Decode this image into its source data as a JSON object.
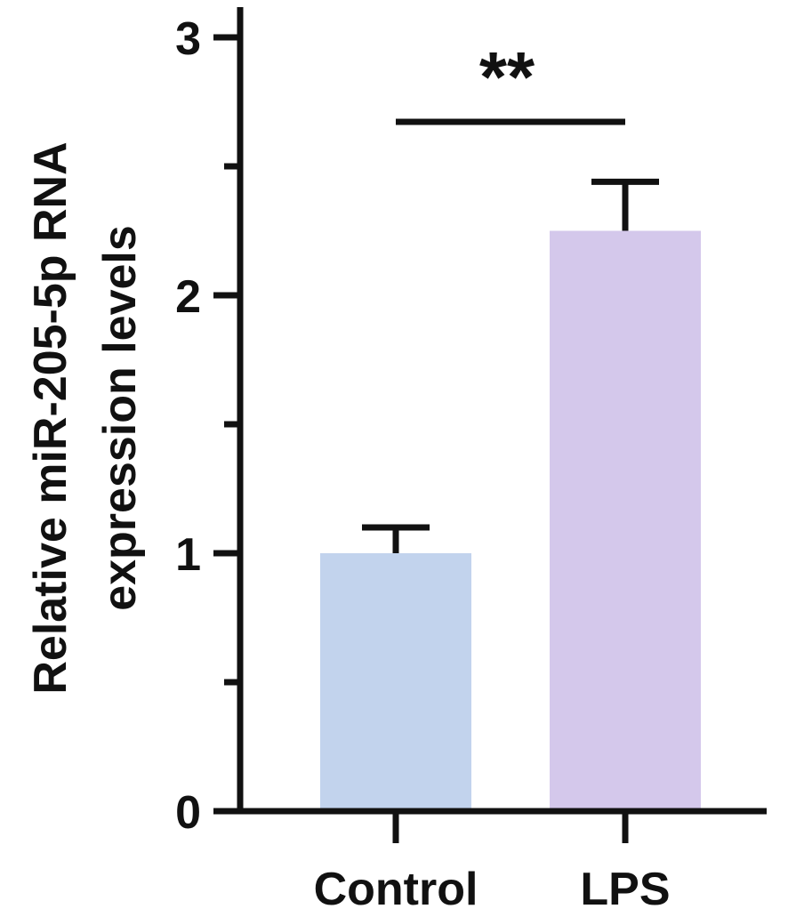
{
  "chart_data": {
    "type": "bar",
    "title": "",
    "xlabel": "",
    "ylabel_lines": [
      "Relative miR-205-5p RNA",
      "expression levels"
    ],
    "categories": [
      "Control",
      "LPS"
    ],
    "values": [
      1.0,
      2.25
    ],
    "error_plus": [
      0.1,
      0.19
    ],
    "colors": [
      "#c2d3ed",
      "#d4c8eb"
    ],
    "ylim": [
      0,
      3.1
    ],
    "yticks_major": [
      0,
      1,
      2,
      3
    ],
    "yticks_minor": [
      0.5,
      1.5,
      2.5
    ],
    "ytick_labels": [
      "0",
      "1",
      "2",
      "3"
    ],
    "grid": false,
    "significance": {
      "between": [
        "Control",
        "LPS"
      ],
      "label": "**"
    }
  }
}
